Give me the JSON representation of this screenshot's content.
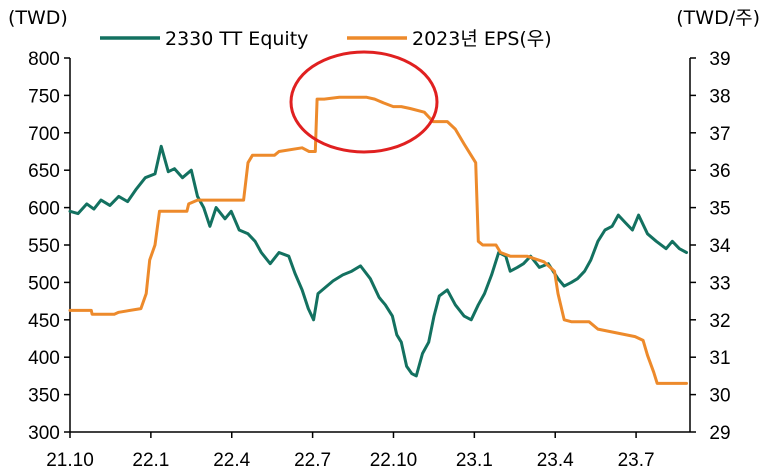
{
  "chart_data": {
    "type": "line",
    "title": "",
    "y_left_unit": "(TWD)",
    "y_right_unit": "(TWD/주)",
    "x_ticks": [
      "21.10",
      "22.1",
      "22.4",
      "22.7",
      "22.10",
      "23.1",
      "23.4",
      "23.7"
    ],
    "y_left_ticks": [
      "800",
      "750",
      "700",
      "650",
      "600",
      "550",
      "500",
      "450",
      "400",
      "350",
      "300"
    ],
    "y_right_ticks": [
      "39",
      "38",
      "37",
      "36",
      "35",
      "34",
      "33",
      "32",
      "31",
      "30",
      "29"
    ],
    "ylim_left": [
      300,
      800
    ],
    "ylim_right": [
      29,
      39
    ],
    "grid": false,
    "legend_position": "top",
    "x_domain": [
      "2021-10-01",
      "2023-09-01"
    ],
    "series": [
      {
        "name": "2330 TT Equity",
        "axis": "left",
        "color": "#137160",
        "points": [
          [
            "2021-10-01",
            595
          ],
          [
            "2021-10-10",
            592
          ],
          [
            "2021-10-20",
            605
          ],
          [
            "2021-10-28",
            598
          ],
          [
            "2021-11-05",
            610
          ],
          [
            "2021-11-15",
            603
          ],
          [
            "2021-11-25",
            615
          ],
          [
            "2021-12-05",
            608
          ],
          [
            "2021-12-15",
            625
          ],
          [
            "2021-12-25",
            640
          ],
          [
            "2022-01-05",
            645
          ],
          [
            "2022-01-12",
            682
          ],
          [
            "2022-01-20",
            648
          ],
          [
            "2022-01-27",
            652
          ],
          [
            "2022-02-05",
            640
          ],
          [
            "2022-02-15",
            650
          ],
          [
            "2022-02-22",
            615
          ],
          [
            "2022-03-01",
            600
          ],
          [
            "2022-03-08",
            575
          ],
          [
            "2022-03-15",
            600
          ],
          [
            "2022-03-25",
            585
          ],
          [
            "2022-04-01",
            595
          ],
          [
            "2022-04-10",
            570
          ],
          [
            "2022-04-20",
            565
          ],
          [
            "2022-04-28",
            555
          ],
          [
            "2022-05-05",
            540
          ],
          [
            "2022-05-15",
            525
          ],
          [
            "2022-05-25",
            540
          ],
          [
            "2022-06-05",
            535
          ],
          [
            "2022-06-12",
            512
          ],
          [
            "2022-06-20",
            490
          ],
          [
            "2022-06-27",
            465
          ],
          [
            "2022-07-03",
            450
          ],
          [
            "2022-07-08",
            485
          ],
          [
            "2022-07-15",
            492
          ],
          [
            "2022-07-25",
            502
          ],
          [
            "2022-08-05",
            510
          ],
          [
            "2022-08-15",
            515
          ],
          [
            "2022-08-25",
            522
          ],
          [
            "2022-09-05",
            505
          ],
          [
            "2022-09-15",
            480
          ],
          [
            "2022-09-22",
            470
          ],
          [
            "2022-09-30",
            455
          ],
          [
            "2022-10-05",
            430
          ],
          [
            "2022-10-10",
            420
          ],
          [
            "2022-10-16",
            388
          ],
          [
            "2022-10-22",
            378
          ],
          [
            "2022-10-27",
            375
          ],
          [
            "2022-11-03",
            405
          ],
          [
            "2022-11-10",
            420
          ],
          [
            "2022-11-16",
            455
          ],
          [
            "2022-11-22",
            482
          ],
          [
            "2022-12-01",
            490
          ],
          [
            "2022-12-10",
            470
          ],
          [
            "2022-12-20",
            455
          ],
          [
            "2022-12-28",
            450
          ],
          [
            "2023-01-05",
            470
          ],
          [
            "2023-01-12",
            485
          ],
          [
            "2023-01-20",
            510
          ],
          [
            "2023-01-28",
            540
          ],
          [
            "2023-02-05",
            535
          ],
          [
            "2023-02-10",
            515
          ],
          [
            "2023-02-18",
            520
          ],
          [
            "2023-02-25",
            525
          ],
          [
            "2023-03-05",
            535
          ],
          [
            "2023-03-15",
            520
          ],
          [
            "2023-03-25",
            525
          ],
          [
            "2023-04-05",
            505
          ],
          [
            "2023-04-12",
            495
          ],
          [
            "2023-04-20",
            500
          ],
          [
            "2023-04-27",
            505
          ],
          [
            "2023-05-05",
            515
          ],
          [
            "2023-05-12",
            530
          ],
          [
            "2023-05-20",
            555
          ],
          [
            "2023-05-28",
            570
          ],
          [
            "2023-06-05",
            575
          ],
          [
            "2023-06-12",
            590
          ],
          [
            "2023-06-20",
            580
          ],
          [
            "2023-06-28",
            570
          ],
          [
            "2023-07-05",
            590
          ],
          [
            "2023-07-15",
            565
          ],
          [
            "2023-07-25",
            555
          ],
          [
            "2023-08-05",
            545
          ],
          [
            "2023-08-12",
            555
          ],
          [
            "2023-08-20",
            545
          ],
          [
            "2023-08-28",
            540
          ]
        ]
      },
      {
        "name": "2023년 EPS(우)",
        "axis": "right",
        "color": "#ed8a2b",
        "points": [
          [
            "2021-10-01",
            32.25
          ],
          [
            "2021-10-25",
            32.25
          ],
          [
            "2021-10-26",
            32.15
          ],
          [
            "2021-11-20",
            32.15
          ],
          [
            "2021-11-25",
            32.2
          ],
          [
            "2021-12-20",
            32.3
          ],
          [
            "2021-12-26",
            32.7
          ],
          [
            "2021-12-30",
            33.6
          ],
          [
            "2022-01-05",
            34.0
          ],
          [
            "2022-01-10",
            34.9
          ],
          [
            "2022-02-10",
            34.9
          ],
          [
            "2022-02-12",
            35.1
          ],
          [
            "2022-02-22",
            35.2
          ],
          [
            "2022-04-15",
            35.2
          ],
          [
            "2022-04-20",
            36.2
          ],
          [
            "2022-04-25",
            36.4
          ],
          [
            "2022-05-20",
            36.4
          ],
          [
            "2022-05-25",
            36.5
          ],
          [
            "2022-06-20",
            36.6
          ],
          [
            "2022-06-28",
            36.5
          ],
          [
            "2022-07-05",
            36.5
          ],
          [
            "2022-07-07",
            37.9
          ],
          [
            "2022-07-15",
            37.9
          ],
          [
            "2022-08-01",
            37.95
          ],
          [
            "2022-08-20",
            37.95
          ],
          [
            "2022-09-01",
            37.95
          ],
          [
            "2022-09-10",
            37.9
          ],
          [
            "2022-09-20",
            37.8
          ],
          [
            "2022-10-01",
            37.7
          ],
          [
            "2022-10-10",
            37.7
          ],
          [
            "2022-10-20",
            37.65
          ],
          [
            "2022-11-05",
            37.55
          ],
          [
            "2022-11-15",
            37.3
          ],
          [
            "2022-12-01",
            37.3
          ],
          [
            "2022-12-10",
            37.1
          ],
          [
            "2022-12-20",
            36.7
          ],
          [
            "2023-01-02",
            36.2
          ],
          [
            "2023-01-05",
            34.1
          ],
          [
            "2023-01-10",
            34.0
          ],
          [
            "2023-01-25",
            34.0
          ],
          [
            "2023-01-30",
            33.8
          ],
          [
            "2023-02-10",
            33.7
          ],
          [
            "2023-03-01",
            33.7
          ],
          [
            "2023-03-20",
            33.55
          ],
          [
            "2023-04-01",
            33.3
          ],
          [
            "2023-04-05",
            32.7
          ],
          [
            "2023-04-12",
            32.0
          ],
          [
            "2023-04-20",
            31.95
          ],
          [
            "2023-05-10",
            31.95
          ],
          [
            "2023-05-20",
            31.75
          ],
          [
            "2023-06-10",
            31.65
          ],
          [
            "2023-07-01",
            31.55
          ],
          [
            "2023-07-10",
            31.45
          ],
          [
            "2023-07-15",
            31.05
          ],
          [
            "2023-07-22",
            30.6
          ],
          [
            "2023-07-26",
            30.3
          ],
          [
            "2023-08-28",
            30.3
          ]
        ]
      }
    ]
  },
  "colors": {
    "stock": "#137160",
    "eps": "#ed8a2b",
    "highlight": "#e02020",
    "axis": "#000000"
  }
}
